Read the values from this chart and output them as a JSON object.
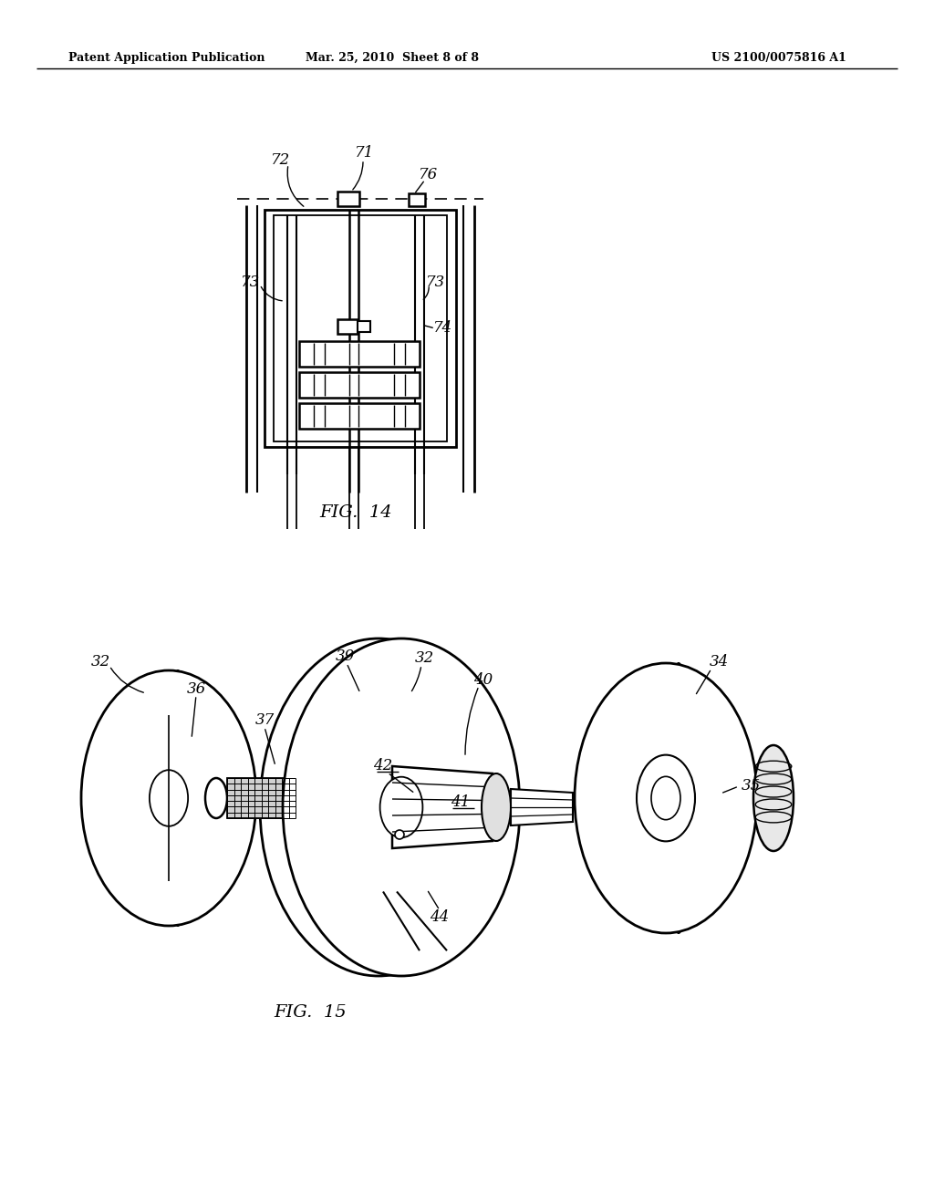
{
  "background_color": "#ffffff",
  "header_left": "Patent Application Publication",
  "header_center": "Mar. 25, 2010  Sheet 8 of 8",
  "header_right": "US 2100/0075816 A1",
  "fig14_label": "FIG.  14",
  "fig15_label": "FIG.  15",
  "line_color": "#000000",
  "text_color": "#000000"
}
